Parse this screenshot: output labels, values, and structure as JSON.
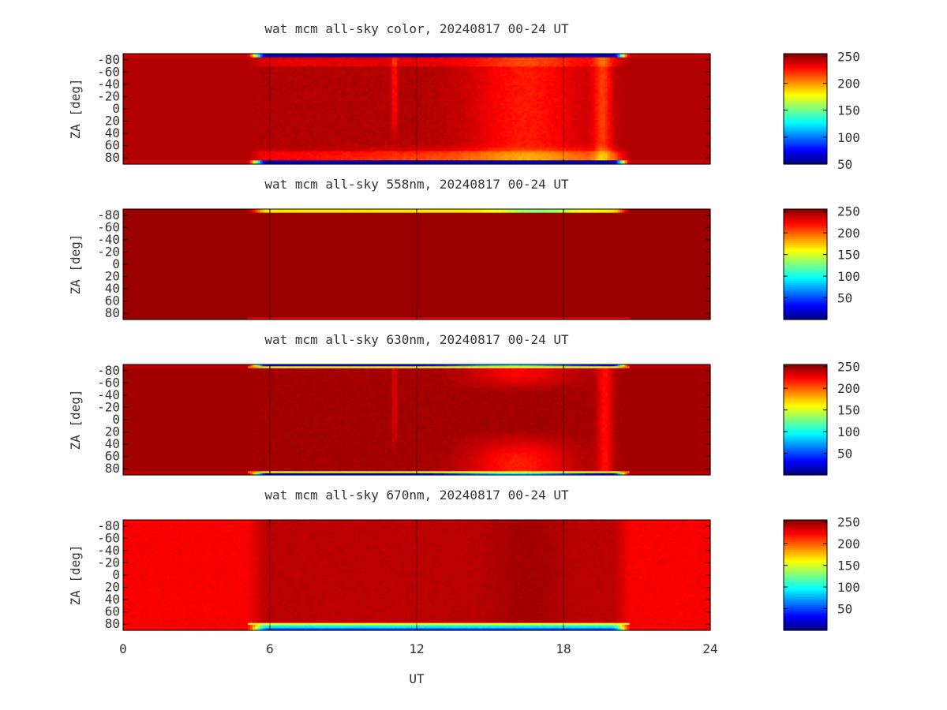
{
  "figure": {
    "xlabel": "UT",
    "x_ticks": [
      "0",
      "6",
      "12",
      "18",
      "24"
    ],
    "y_ticks": [
      "-80",
      "-60",
      "-40",
      "-20",
      "0",
      "20",
      "40",
      "60",
      "80"
    ],
    "ylabel": "ZA [deg]"
  },
  "colormap": {
    "name": "jet",
    "stops": [
      "#00007f",
      "#0000ff",
      "#007fff",
      "#00ffff",
      "#7fff7f",
      "#ffff00",
      "#ff7f00",
      "#ff0000",
      "#7f0000"
    ]
  },
  "chart_data": [
    {
      "type": "heatmap",
      "title": "wat mcm all-sky color, 20240817 00-24 UT",
      "xlabel": "UT",
      "ylabel": "ZA [deg]",
      "xlim": [
        0,
        24
      ],
      "ylim": [
        -90,
        90
      ],
      "x_ticks": [
        0,
        6,
        12,
        18,
        24
      ],
      "y_ticks": [
        -80,
        -60,
        -40,
        -20,
        0,
        20,
        40,
        60,
        80
      ],
      "colorbar": {
        "range": [
          50,
          255
        ],
        "ticks": [
          "250",
          "200",
          "150",
          "100",
          "50"
        ]
      },
      "description_values": {
        "background_level": 245,
        "night_start_ut": 5.3,
        "night_end_ut": 20.5,
        "edge_min": 60
      }
    },
    {
      "type": "heatmap",
      "title": "wat mcm all-sky 558nm, 20240817 00-24 UT",
      "xlabel": "UT",
      "ylabel": "ZA [deg]",
      "xlim": [
        0,
        24
      ],
      "ylim": [
        -90,
        90
      ],
      "x_ticks": [
        0,
        6,
        12,
        18,
        24
      ],
      "y_ticks": [
        -80,
        -60,
        -40,
        -20,
        0,
        20,
        40,
        60,
        80
      ],
      "colorbar": {
        "range": [
          0,
          255
        ],
        "ticks": [
          "250",
          "200",
          "150",
          "100",
          "50"
        ]
      },
      "description_values": {
        "background_level": 248,
        "night_start_ut": 5.3,
        "night_end_ut": 20.5,
        "edge_min": 120
      }
    },
    {
      "type": "heatmap",
      "title": "wat mcm all-sky 630nm, 20240817 00-24 UT",
      "xlabel": "UT",
      "ylabel": "ZA [deg]",
      "xlim": [
        0,
        24
      ],
      "ylim": [
        -90,
        90
      ],
      "x_ticks": [
        0,
        6,
        12,
        18,
        24
      ],
      "y_ticks": [
        -80,
        -60,
        -40,
        -20,
        0,
        20,
        40,
        60,
        80
      ],
      "colorbar": {
        "range": [
          0,
          255
        ],
        "ticks": [
          "250",
          "200",
          "150",
          "100",
          "50"
        ]
      },
      "description_values": {
        "background_level": 245,
        "night_start_ut": 5.3,
        "night_end_ut": 20.5,
        "edge_min": 20
      }
    },
    {
      "type": "heatmap",
      "title": "wat mcm all-sky 670nm, 20240817 00-24 UT",
      "xlabel": "UT",
      "ylabel": "ZA [deg]",
      "xlim": [
        0,
        24
      ],
      "ylim": [
        -90,
        90
      ],
      "x_ticks": [
        0,
        6,
        12,
        18,
        24
      ],
      "y_ticks": [
        -80,
        -60,
        -40,
        -20,
        0,
        20,
        40,
        60,
        80
      ],
      "colorbar": {
        "range": [
          0,
          255
        ],
        "ticks": [
          "250",
          "200",
          "150",
          "100",
          "50"
        ]
      },
      "description_values": {
        "background_level": 235,
        "night_start_ut": 5.3,
        "night_end_ut": 20.5,
        "edge_min": 30
      }
    }
  ]
}
